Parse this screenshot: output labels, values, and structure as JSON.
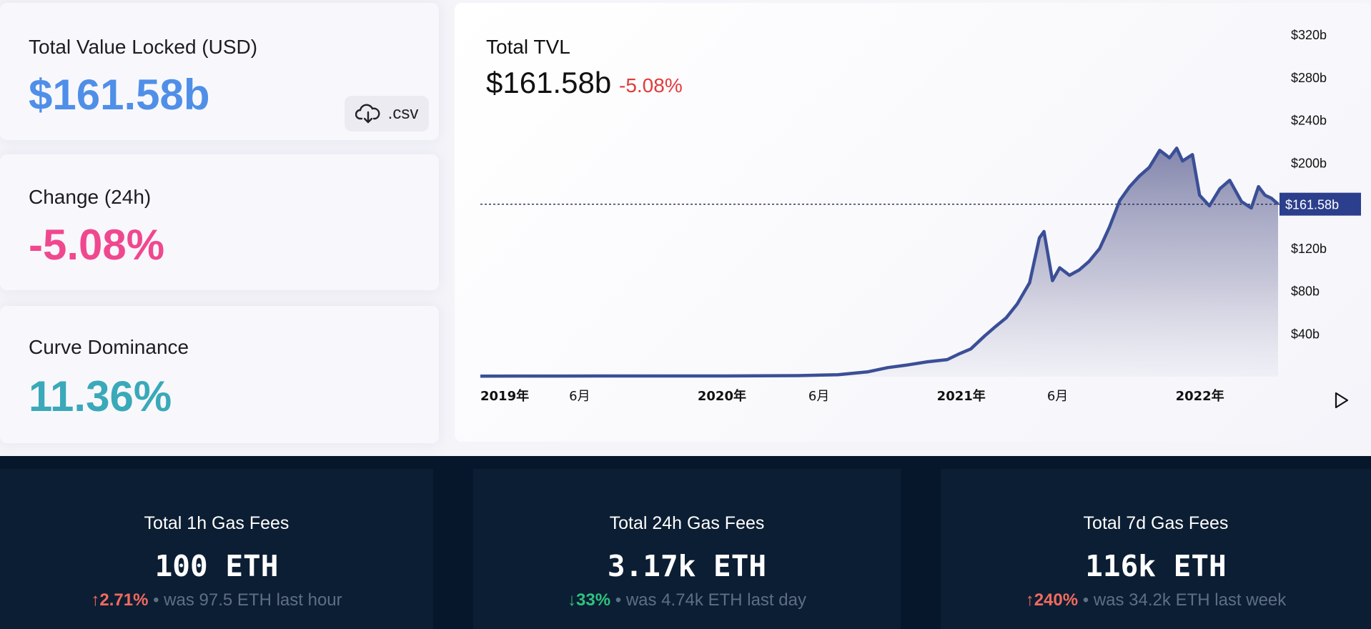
{
  "stats": {
    "tvl_label": "Total Value Locked (USD)",
    "tvl_value": "$161.58b",
    "csv_label": ".csv",
    "change_label": "Change (24h)",
    "change_value": "-5.08%",
    "dominance_label": "Curve Dominance",
    "dominance_value": "11.36%",
    "colors": {
      "tvl": "#4f8fe8",
      "change": "#f0488f",
      "dominance": "#3aa9b9"
    }
  },
  "chart": {
    "title": "Total TVL",
    "value": "$161.58b",
    "change": "-5.08%",
    "current_tag": "$161.58b",
    "line_color": "#3b4f97"
  },
  "chart_data": {
    "type": "area",
    "x_ticks": [
      "2019年",
      "6月",
      "2020年",
      "6月",
      "2021年",
      "6月",
      "2022年"
    ],
    "y_ticks": [
      "$40b",
      "$80b",
      "$120b",
      "$160b",
      "$200b",
      "$240b",
      "$280b",
      "$320b"
    ],
    "ylim": [
      0,
      320
    ],
    "reference_line": 161.58,
    "series": [
      {
        "x": [
          "2019-01-01",
          "2019-03-01",
          "2019-05-01",
          "2019-07-01",
          "2019-09-01",
          "2019-11-01",
          "2020-01-01",
          "2020-03-01",
          "2020-05-01",
          "2020-07-01",
          "2020-08-15",
          "2020-09-15",
          "2020-10-15",
          "2020-11-15",
          "2020-12-15",
          "2021-01-01",
          "2021-01-20",
          "2021-02-10",
          "2021-02-25",
          "2021-03-15",
          "2021-04-01",
          "2021-04-20",
          "2021-05-05",
          "2021-05-12",
          "2021-05-25",
          "2021-06-05",
          "2021-06-20",
          "2021-07-05",
          "2021-07-20",
          "2021-08-05",
          "2021-08-20",
          "2021-09-05",
          "2021-09-20",
          "2021-10-05",
          "2021-10-20",
          "2021-11-05",
          "2021-11-20",
          "2021-12-01",
          "2021-12-10",
          "2021-12-25",
          "2022-01-05",
          "2022-01-20",
          "2022-02-05",
          "2022-02-20",
          "2022-03-10",
          "2022-03-25",
          "2022-04-05",
          "2022-04-15",
          "2022-04-25",
          "2022-05-05"
        ],
        "values": [
          0.5,
          0.6,
          0.6,
          0.7,
          0.7,
          0.7,
          0.7,
          0.8,
          1.0,
          1.8,
          4.5,
          8.5,
          11,
          14,
          16,
          21,
          26,
          38,
          46,
          55,
          68,
          88,
          130,
          136,
          90,
          102,
          95,
          100,
          108,
          120,
          140,
          165,
          178,
          188,
          196,
          212,
          205,
          214,
          202,
          208,
          170,
          160,
          176,
          184,
          164,
          158,
          178,
          170,
          167,
          161.58
        ]
      }
    ]
  },
  "gas": [
    {
      "title": "Total 1h Gas Fees",
      "value": "100 ETH",
      "pct": "2.71%",
      "arrow": "↑",
      "note": "• was 97.5 ETH last hour",
      "color": "#f36a5f"
    },
    {
      "title": "Total 24h Gas Fees",
      "value": "3.17k ETH",
      "pct": "33%",
      "arrow": "↓",
      "note": "• was 4.74k ETH last day",
      "color": "#2ec27e"
    },
    {
      "title": "Total 7d Gas Fees",
      "value": "116k ETH",
      "pct": "240%",
      "arrow": "↑",
      "note": "• was 34.2k ETH last week",
      "color": "#f36a5f"
    }
  ],
  "icons": {
    "download": "cloud-download-icon",
    "next": "play-triangle-icon"
  }
}
